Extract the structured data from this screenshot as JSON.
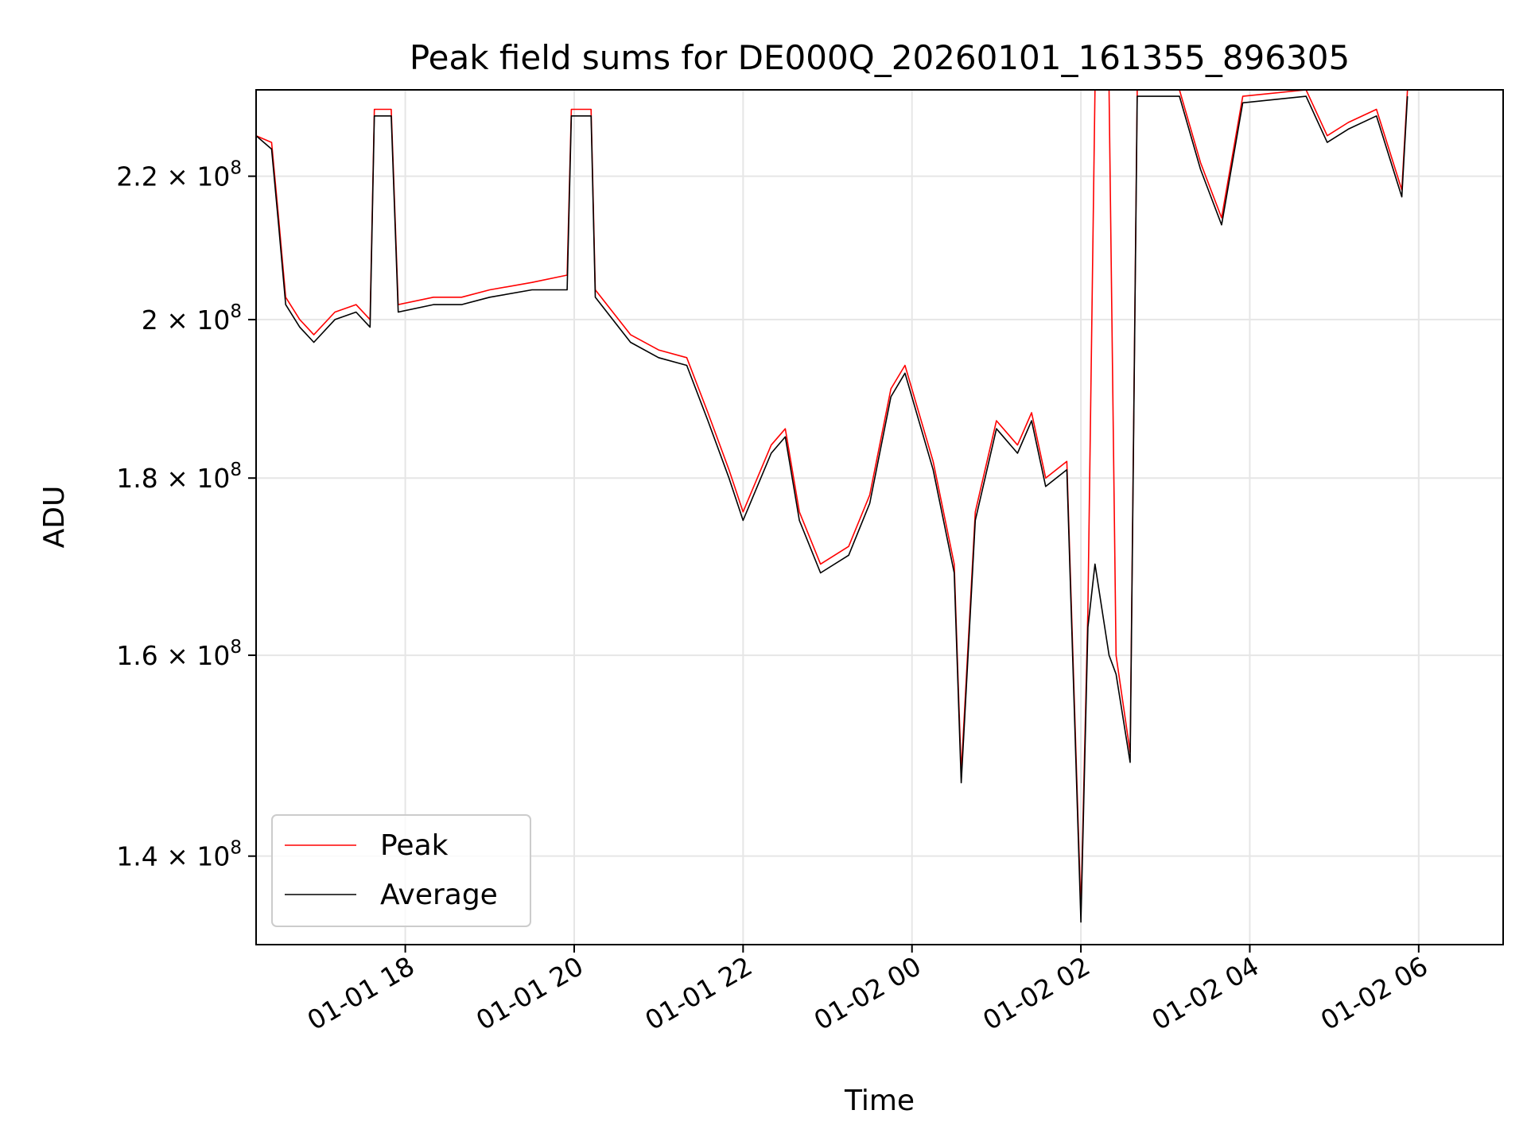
{
  "chart_data": {
    "type": "line",
    "title": "Peak field sums for DE000Q_20260101_161355_896305",
    "xlabel": "Time",
    "ylabel": "ADU",
    "yscale": "log",
    "ylim": [
      132000000,
      233000000
    ],
    "xlim": [
      "2026-01-01 16:14",
      "2026-01-02 07:00"
    ],
    "grid": true,
    "legend_placement": "lower-left",
    "x_ticks": [
      {
        "at": "2026-01-01 18:00",
        "label": "01-01 18"
      },
      {
        "at": "2026-01-01 20:00",
        "label": "01-01 20"
      },
      {
        "at": "2026-01-01 22:00",
        "label": "01-01 22"
      },
      {
        "at": "2026-01-02 00:00",
        "label": "01-02 00"
      },
      {
        "at": "2026-01-02 02:00",
        "label": "01-02 02"
      },
      {
        "at": "2026-01-02 04:00",
        "label": "01-02 04"
      },
      {
        "at": "2026-01-02 06:00",
        "label": "01-02 06"
      }
    ],
    "y_ticks": [
      {
        "value": 140000000,
        "mantissa": "1.4",
        "exponent": "8"
      },
      {
        "value": 160000000,
        "mantissa": "1.6",
        "exponent": "8"
      },
      {
        "value": 180000000,
        "mantissa": "1.8",
        "exponent": "8"
      },
      {
        "value": 200000000,
        "mantissa": "2",
        "exponent": "8"
      },
      {
        "value": 220000000,
        "mantissa": "2.2",
        "exponent": "8"
      }
    ],
    "series": [
      {
        "name": "Peak",
        "color": "#ff0000",
        "points": [
          [
            "2026-01-01 16:14",
            226000000.0
          ],
          [
            "2026-01-01 16:25",
            225000000.0
          ],
          [
            "2026-01-01 16:30",
            214000000.0
          ],
          [
            "2026-01-01 16:35",
            203000000.0
          ],
          [
            "2026-01-01 16:45",
            200000000.0
          ],
          [
            "2026-01-01 16:55",
            198000000.0
          ],
          [
            "2026-01-01 17:10",
            201000000.0
          ],
          [
            "2026-01-01 17:25",
            202000000.0
          ],
          [
            "2026-01-01 17:35",
            200000000.0
          ],
          [
            "2026-01-01 17:38",
            230000000.0
          ],
          [
            "2026-01-01 17:50",
            230000000.0
          ],
          [
            "2026-01-01 17:55",
            202000000.0
          ],
          [
            "2026-01-01 18:20",
            203000000.0
          ],
          [
            "2026-01-01 18:40",
            203000000.0
          ],
          [
            "2026-01-01 19:00",
            204000000.0
          ],
          [
            "2026-01-01 19:30",
            205000000.0
          ],
          [
            "2026-01-01 19:55",
            206000000.0
          ],
          [
            "2026-01-01 19:58",
            230000000.0
          ],
          [
            "2026-01-01 20:12",
            230000000.0
          ],
          [
            "2026-01-01 20:15",
            204000000.0
          ],
          [
            "2026-01-01 20:40",
            198000000.0
          ],
          [
            "2026-01-01 21:00",
            196000000.0
          ],
          [
            "2026-01-01 21:20",
            195000000.0
          ],
          [
            "2026-01-01 21:35",
            188000000.0
          ],
          [
            "2026-01-01 21:50",
            181000000.0
          ],
          [
            "2026-01-01 22:00",
            176000000.0
          ],
          [
            "2026-01-01 22:20",
            184000000.0
          ],
          [
            "2026-01-01 22:30",
            186000000.0
          ],
          [
            "2026-01-01 22:40",
            176000000.0
          ],
          [
            "2026-01-01 22:55",
            170000000.0
          ],
          [
            "2026-01-01 23:15",
            172000000.0
          ],
          [
            "2026-01-01 23:30",
            178000000.0
          ],
          [
            "2026-01-01 23:45",
            191000000.0
          ],
          [
            "2026-01-01 23:55",
            194000000.0
          ],
          [
            "2026-01-02 00:15",
            182000000.0
          ],
          [
            "2026-01-02 00:30",
            170000000.0
          ],
          [
            "2026-01-02 00:35",
            148000000.0
          ],
          [
            "2026-01-02 00:45",
            176000000.0
          ],
          [
            "2026-01-02 01:00",
            187000000.0
          ],
          [
            "2026-01-02 01:15",
            184000000.0
          ],
          [
            "2026-01-02 01:25",
            188000000.0
          ],
          [
            "2026-01-02 01:35",
            180000000.0
          ],
          [
            "2026-01-02 01:50",
            182000000.0
          ],
          [
            "2026-01-02 02:00",
            135000000.0
          ],
          [
            "2026-01-02 02:05",
            165000000.0
          ],
          [
            "2026-01-02 02:10",
            233000000.0
          ],
          [
            "2026-01-02 02:20",
            233000000.0
          ],
          [
            "2026-01-02 02:25",
            160000000.0
          ],
          [
            "2026-01-02 02:35",
            150000000.0
          ],
          [
            "2026-01-02 02:40",
            233000000.0
          ],
          [
            "2026-01-02 03:10",
            233000000.0
          ],
          [
            "2026-01-02 03:25",
            222000000.0
          ],
          [
            "2026-01-02 03:40",
            214000000.0
          ],
          [
            "2026-01-02 03:55",
            232000000.0
          ],
          [
            "2026-01-02 04:40",
            233000000.0
          ],
          [
            "2026-01-02 04:55",
            226000000.0
          ],
          [
            "2026-01-02 05:10",
            228000000.0
          ],
          [
            "2026-01-02 05:30",
            230000000.0
          ],
          [
            "2026-01-02 05:48",
            218000000.0
          ],
          [
            "2026-01-02 05:52",
            233000000.0
          ]
        ]
      },
      {
        "name": "Average",
        "color": "#000000",
        "points": [
          [
            "2026-01-01 16:14",
            226000000.0
          ],
          [
            "2026-01-01 16:25",
            224000000.0
          ],
          [
            "2026-01-01 16:30",
            213000000.0
          ],
          [
            "2026-01-01 16:35",
            202000000.0
          ],
          [
            "2026-01-01 16:45",
            199000000.0
          ],
          [
            "2026-01-01 16:55",
            197000000.0
          ],
          [
            "2026-01-01 17:10",
            200000000.0
          ],
          [
            "2026-01-01 17:25",
            201000000.0
          ],
          [
            "2026-01-01 17:35",
            199000000.0
          ],
          [
            "2026-01-01 17:38",
            229000000.0
          ],
          [
            "2026-01-01 17:50",
            229000000.0
          ],
          [
            "2026-01-01 17:55",
            201000000.0
          ],
          [
            "2026-01-01 18:20",
            202000000.0
          ],
          [
            "2026-01-01 18:40",
            202000000.0
          ],
          [
            "2026-01-01 19:00",
            203000000.0
          ],
          [
            "2026-01-01 19:30",
            204000000.0
          ],
          [
            "2026-01-01 19:55",
            204000000.0
          ],
          [
            "2026-01-01 19:58",
            229000000.0
          ],
          [
            "2026-01-01 20:12",
            229000000.0
          ],
          [
            "2026-01-01 20:15",
            203000000.0
          ],
          [
            "2026-01-01 20:40",
            197000000.0
          ],
          [
            "2026-01-01 21:00",
            195000000.0
          ],
          [
            "2026-01-01 21:20",
            194000000.0
          ],
          [
            "2026-01-01 21:35",
            187000000.0
          ],
          [
            "2026-01-01 21:50",
            180000000.0
          ],
          [
            "2026-01-01 22:00",
            175000000.0
          ],
          [
            "2026-01-01 22:20",
            183000000.0
          ],
          [
            "2026-01-01 22:30",
            185000000.0
          ],
          [
            "2026-01-01 22:40",
            175000000.0
          ],
          [
            "2026-01-01 22:55",
            169000000.0
          ],
          [
            "2026-01-01 23:15",
            171000000.0
          ],
          [
            "2026-01-01 23:30",
            177000000.0
          ],
          [
            "2026-01-01 23:45",
            190000000.0
          ],
          [
            "2026-01-01 23:55",
            193000000.0
          ],
          [
            "2026-01-02 00:15",
            181000000.0
          ],
          [
            "2026-01-02 00:30",
            169000000.0
          ],
          [
            "2026-01-02 00:35",
            147000000.0
          ],
          [
            "2026-01-02 00:45",
            175000000.0
          ],
          [
            "2026-01-02 01:00",
            186000000.0
          ],
          [
            "2026-01-02 01:15",
            183000000.0
          ],
          [
            "2026-01-02 01:25",
            187000000.0
          ],
          [
            "2026-01-02 01:35",
            179000000.0
          ],
          [
            "2026-01-02 01:50",
            181000000.0
          ],
          [
            "2026-01-02 02:00",
            134000000.0
          ],
          [
            "2026-01-02 02:05",
            163000000.0
          ],
          [
            "2026-01-02 02:10",
            170000000.0
          ],
          [
            "2026-01-02 02:20",
            160000000.0
          ],
          [
            "2026-01-02 02:25",
            158000000.0
          ],
          [
            "2026-01-02 02:35",
            149000000.0
          ],
          [
            "2026-01-02 02:40",
            232000000.0
          ],
          [
            "2026-01-02 03:10",
            232000000.0
          ],
          [
            "2026-01-02 03:25",
            221000000.0
          ],
          [
            "2026-01-02 03:40",
            213000000.0
          ],
          [
            "2026-01-02 03:55",
            231000000.0
          ],
          [
            "2026-01-02 04:40",
            232000000.0
          ],
          [
            "2026-01-02 04:55",
            225000000.0
          ],
          [
            "2026-01-02 05:10",
            227000000.0
          ],
          [
            "2026-01-02 05:30",
            229000000.0
          ],
          [
            "2026-01-02 05:48",
            217000000.0
          ],
          [
            "2026-01-02 05:52",
            232000000.0
          ]
        ]
      }
    ]
  }
}
